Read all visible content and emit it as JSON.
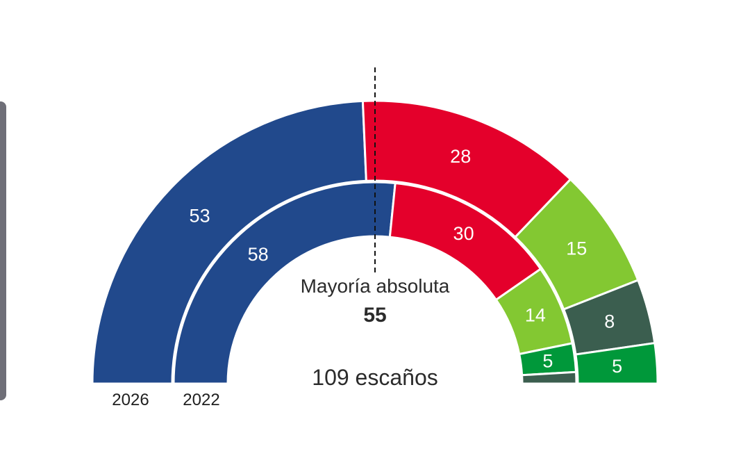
{
  "chart_data": {
    "type": "pie",
    "subtype": "parliament-half-donut",
    "total_seats": 109,
    "total_label": "109 escaños",
    "majority": {
      "label": "Mayoría absoluta",
      "value": 55
    },
    "colors": {
      "blue": "#21498c",
      "red": "#e4002b",
      "lightgreen": "#83c832",
      "darkgreen": "#3b5e4f",
      "green": "#00983a"
    },
    "rings": [
      {
        "label": "2026",
        "segments": [
          {
            "seats": 53,
            "color": "#21498c",
            "label": "53"
          },
          {
            "seats": 28,
            "color": "#e4002b",
            "label": "28"
          },
          {
            "seats": 15,
            "color": "#83c832",
            "label": "15"
          },
          {
            "seats": 8,
            "color": "#3b5e4f",
            "label": "8"
          },
          {
            "seats": 5,
            "color": "#00983a",
            "label": "5"
          }
        ]
      },
      {
        "label": "2022",
        "segments": [
          {
            "seats": 58,
            "color": "#21498c",
            "label": "58"
          },
          {
            "seats": 30,
            "color": "#e4002b",
            "label": "30"
          },
          {
            "seats": 14,
            "color": "#83c832",
            "label": "14"
          },
          {
            "seats": 5,
            "color": "#00983a",
            "label": "5"
          },
          {
            "seats": 2,
            "color": "#3b5e4f",
            "label": ""
          }
        ]
      }
    ]
  }
}
